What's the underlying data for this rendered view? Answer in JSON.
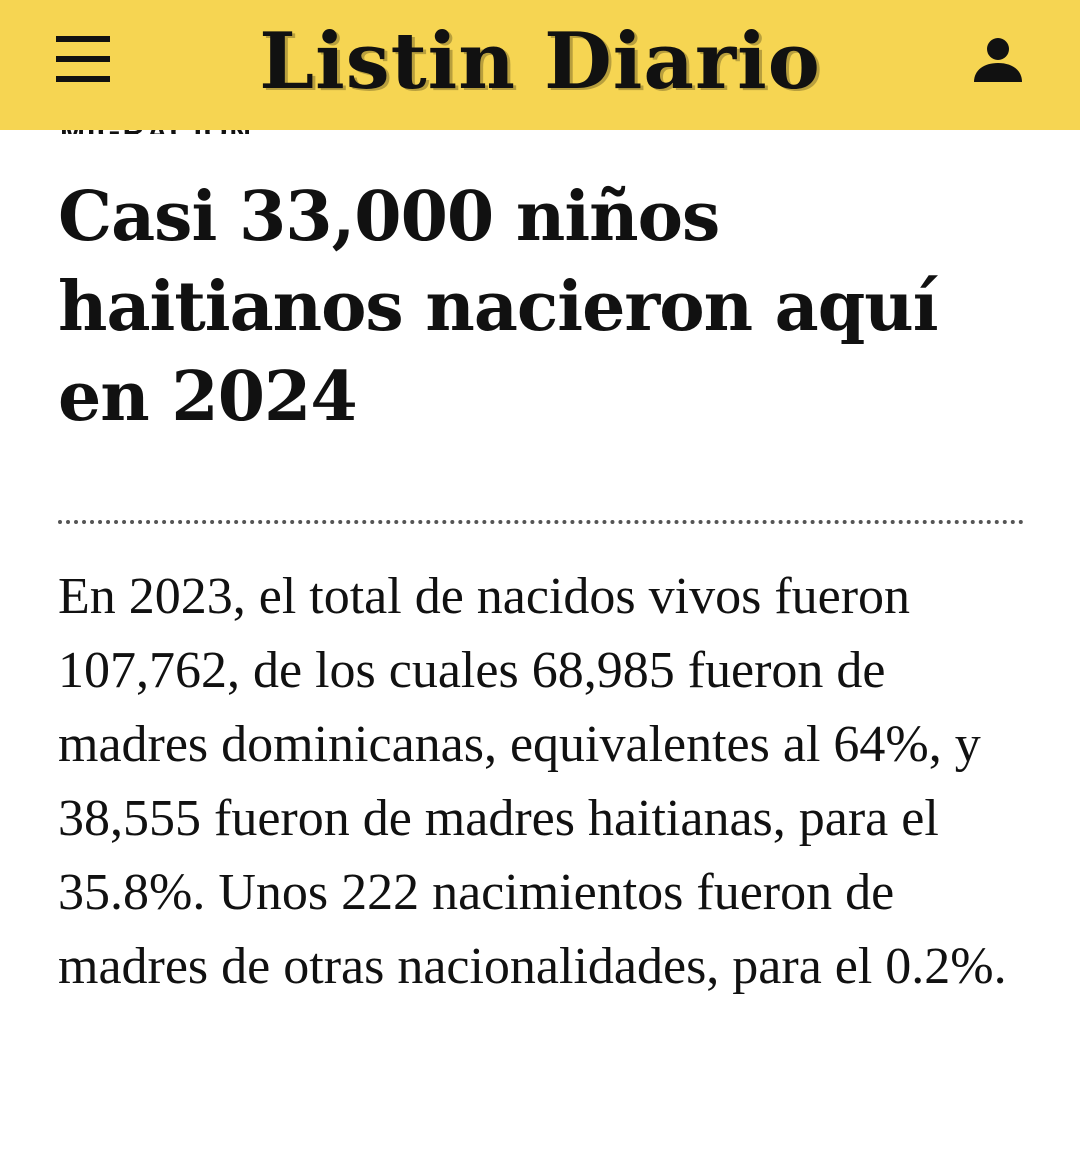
{
  "header": {
    "logo_text": "Listin Diario",
    "menu_icon": "hamburger-menu-icon",
    "user_icon": "user-account-icon",
    "background_color": "#f6d552"
  },
  "article": {
    "section_label": "MIGRACIÓN",
    "headline": "Casi 33,000 niños haitianos nacieron aquí en 2024",
    "body": "En 2023, el total de nacidos vivos fueron 107,762, de los cuales 68,985 fueron de madres dominicanas, equivalentes al 64%, y 38,555 fueron de madres haitianas, para el 35.8%. Unos 222 nacimientos fueron de madres de otras nacionalidades, para el 0.2%."
  }
}
